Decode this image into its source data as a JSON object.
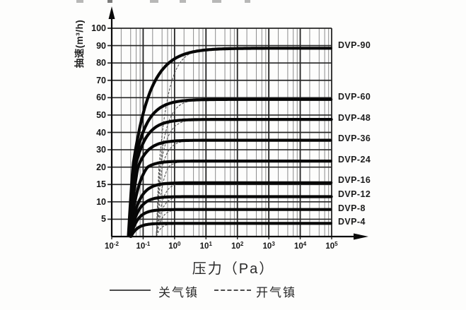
{
  "figure": {
    "ylabel": "抽速(m³/h)",
    "xlabel": "压力（Pa）"
  },
  "legend": {
    "solid_label": "关气镇",
    "dashed_label": "开气镇"
  },
  "chart_data": {
    "type": "line",
    "title": "",
    "xlabel": "压力（Pa）",
    "ylabel": "抽速(m³/h)",
    "x_scale": "log",
    "x_range_pa": [
      0.01,
      100000
    ],
    "x_tick_exponents": [
      "-2",
      "-1",
      "0",
      "1",
      "2",
      "3",
      "4",
      "5"
    ],
    "minor_grid_multiples": [
      2,
      4,
      6,
      8
    ],
    "y_tick_values": [
      5,
      10,
      15,
      20,
      30,
      40,
      50,
      60,
      70,
      80,
      90,
      100
    ],
    "y_axis_note": "labeled ticks evenly spaced (non-linear value axis)",
    "grid": "on",
    "legend_position": "bottom",
    "line_styles": {
      "solid": "关气镇 (gas ballast closed)",
      "dashed": "开气镇 (gas ballast open)"
    },
    "series": [
      {
        "name": "DVP-90",
        "plateau": 88.5,
        "label_value": 90,
        "points": [
          [
            0.05,
            24
          ],
          [
            0.1,
            51
          ],
          [
            0.5,
            77
          ],
          [
            1,
            82
          ],
          [
            10,
            87.5
          ],
          [
            100,
            88.3
          ],
          [
            100000,
            88.5
          ]
        ],
        "draw": {
          "xs": -1.47,
          "w": 0.55,
          "xsd": -0.58,
          "wd": 0.32
        }
      },
      {
        "name": "DVP-60",
        "plateau": 59,
        "label_value": 60,
        "points": [
          [
            0.05,
            18
          ],
          [
            0.1,
            40
          ],
          [
            0.5,
            55.5
          ],
          [
            1,
            57.4
          ],
          [
            10,
            58.8
          ],
          [
            100000,
            59
          ]
        ],
        "draw": {
          "xs": -1.46,
          "w": 0.4,
          "xsd": -0.58,
          "wd": 0.26
        }
      },
      {
        "name": "DVP-48",
        "plateau": 47.5,
        "label_value": 48,
        "points": [
          [
            0.05,
            16
          ],
          [
            0.1,
            34
          ],
          [
            0.5,
            45.6
          ],
          [
            1,
            47
          ],
          [
            10,
            47.4
          ],
          [
            100000,
            47.5
          ]
        ],
        "draw": {
          "xs": -1.45,
          "w": 0.36,
          "xsd": -0.58,
          "wd": 0.24
        }
      },
      {
        "name": "DVP-36",
        "plateau": 35.5,
        "label_value": 36,
        "points": [
          [
            0.05,
            13
          ],
          [
            0.1,
            26.4
          ],
          [
            0.5,
            34.4
          ],
          [
            1,
            35
          ],
          [
            10,
            35.4
          ],
          [
            100000,
            35.5
          ]
        ],
        "draw": {
          "xs": -1.44,
          "w": 0.33,
          "xsd": -0.58,
          "wd": 0.22
        }
      },
      {
        "name": "DVP-24",
        "plateau": 23.5,
        "label_value": 24,
        "points": [
          [
            0.05,
            9.2
          ],
          [
            0.1,
            18.3
          ],
          [
            0.5,
            23
          ],
          [
            1,
            23.3
          ],
          [
            10,
            23.5
          ],
          [
            100000,
            23.5
          ]
        ],
        "draw": {
          "xs": -1.43,
          "w": 0.3,
          "xsd": -0.58,
          "wd": 0.2
        }
      },
      {
        "name": "DVP-16",
        "plateau": 15.5,
        "label_value": 16,
        "points": [
          [
            0.05,
            6.6
          ],
          [
            0.1,
            12.6
          ],
          [
            0.5,
            15.2
          ],
          [
            1,
            15.4
          ],
          [
            10,
            15.5
          ],
          [
            100000,
            15.5
          ]
        ],
        "draw": {
          "xs": -1.42,
          "w": 0.27,
          "xsd": -0.58,
          "wd": 0.18
        }
      },
      {
        "name": "DVP-12",
        "plateau": 11.5,
        "label_value": 12,
        "points": [
          [
            0.05,
            5.2
          ],
          [
            0.1,
            9.6
          ],
          [
            0.5,
            11.4
          ],
          [
            1,
            11.45
          ],
          [
            10,
            11.5
          ],
          [
            100000,
            11.5
          ]
        ],
        "draw": {
          "xs": -1.41,
          "w": 0.25,
          "xsd": -0.58,
          "wd": 0.17
        }
      },
      {
        "name": "DVP-8",
        "plateau": 7.8,
        "label_value": 8,
        "points": [
          [
            0.05,
            3.7
          ],
          [
            0.1,
            6.7
          ],
          [
            0.5,
            7.7
          ],
          [
            1,
            7.75
          ],
          [
            10,
            7.8
          ],
          [
            100000,
            7.8
          ]
        ],
        "draw": {
          "xs": -1.4,
          "w": 0.23,
          "xsd": -0.58,
          "wd": 0.16
        }
      },
      {
        "name": "DVP-4",
        "plateau": 3.8,
        "label_value": 4,
        "points": [
          [
            0.05,
            1.9
          ],
          [
            0.1,
            3.4
          ],
          [
            0.5,
            3.75
          ],
          [
            1,
            3.8
          ],
          [
            10,
            3.8
          ],
          [
            100000,
            3.8
          ]
        ],
        "draw": {
          "xs": -1.39,
          "w": 0.21,
          "xsd": -0.58,
          "wd": 0.15
        }
      }
    ]
  }
}
